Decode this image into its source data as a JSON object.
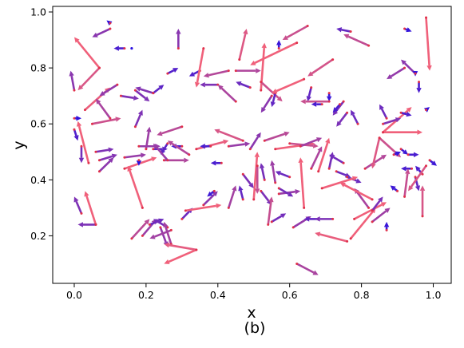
{
  "figure": {
    "label": "(b)"
  },
  "chart_data": {
    "type": "quiver",
    "xlabel": "x",
    "ylabel": "y",
    "xlim": [
      -0.06,
      1.05
    ],
    "ylim": [
      0.03,
      1.02
    ],
    "xticks": [
      {
        "value": 0.0,
        "label": "0.0"
      },
      {
        "value": 0.2,
        "label": "0.2"
      },
      {
        "value": 0.4,
        "label": "0.4"
      },
      {
        "value": 0.6,
        "label": "0.6"
      },
      {
        "value": 0.8,
        "label": "0.8"
      },
      {
        "value": 1.0,
        "label": "1.0"
      }
    ],
    "yticks": [
      {
        "value": 0.2,
        "label": "0.2"
      },
      {
        "value": 0.4,
        "label": "0.4"
      },
      {
        "value": 0.6,
        "label": "0.6"
      },
      {
        "value": 0.8,
        "label": "0.8"
      },
      {
        "value": 1.0,
        "label": "1.0"
      }
    ],
    "grid": false,
    "color_scale": {
      "long_arrow_color": "#f0607a",
      "short_arrow_color": "#2a10e0"
    },
    "arrows": [
      {
        "x": 0.07,
        "y": 0.8,
        "dx": -0.06,
        "dy": -0.08
      },
      {
        "x": 0.07,
        "y": 0.8,
        "dx": -0.07,
        "dy": 0.11
      },
      {
        "x": 0.1,
        "y": 0.94,
        "dx": -0.05,
        "dy": -0.03
      },
      {
        "x": 0.1,
        "y": 0.96,
        "dx": -0.01,
        "dy": 0.01
      },
      {
        "x": 0.14,
        "y": 0.87,
        "dx": -0.03,
        "dy": 0.0
      },
      {
        "x": 0.16,
        "y": 0.87,
        "dx": 0.0,
        "dy": 0.0
      },
      {
        "x": 0.29,
        "y": 0.87,
        "dx": 0.0,
        "dy": 0.07
      },
      {
        "x": 0.46,
        "y": 0.83,
        "dx": 0.02,
        "dy": 0.11
      },
      {
        "x": 0.52,
        "y": 0.72,
        "dx": 0.01,
        "dy": 0.17
      },
      {
        "x": 0.57,
        "y": 0.87,
        "dx": 0.0,
        "dy": 0.03
      },
      {
        "x": 0.62,
        "y": 0.89,
        "dx": -0.13,
        "dy": -0.08
      },
      {
        "x": 0.65,
        "y": 0.95,
        "dx": -0.07,
        "dy": -0.05
      },
      {
        "x": 0.77,
        "y": 0.93,
        "dx": -0.04,
        "dy": 0.01
      },
      {
        "x": 0.72,
        "y": 0.83,
        "dx": -0.07,
        "dy": -0.06
      },
      {
        "x": 0.82,
        "y": 0.88,
        "dx": -0.07,
        "dy": 0.04
      },
      {
        "x": 0.92,
        "y": 0.94,
        "dx": 0.02,
        "dy": -0.01
      },
      {
        "x": 0.98,
        "y": 0.98,
        "dx": 0.01,
        "dy": -0.19
      },
      {
        "x": 0.92,
        "y": 0.8,
        "dx": -0.05,
        "dy": -0.04
      },
      {
        "x": 0.95,
        "y": 0.78,
        "dx": -0.04,
        "dy": 0.05
      },
      {
        "x": 0.95,
        "y": 0.78,
        "dx": 0.0,
        "dy": -0.01
      },
      {
        "x": 0.96,
        "y": 0.75,
        "dx": 0.0,
        "dy": -0.04
      },
      {
        "x": 0.0,
        "y": 0.72,
        "dx": -0.01,
        "dy": 0.07
      },
      {
        "x": 0.03,
        "y": 0.65,
        "dx": 0.07,
        "dy": 0.08
      },
      {
        "x": 0.05,
        "y": 0.6,
        "dx": 0.08,
        "dy": 0.02
      },
      {
        "x": 0.1,
        "y": 0.62,
        "dx": -0.04,
        "dy": 0.07
      },
      {
        "x": 0.12,
        "y": 0.74,
        "dx": -0.05,
        "dy": -0.04
      },
      {
        "x": 0.13,
        "y": 0.7,
        "dx": 0.05,
        "dy": -0.01
      },
      {
        "x": 0.17,
        "y": 0.72,
        "dx": 0.04,
        "dy": -0.04
      },
      {
        "x": 0.22,
        "y": 0.71,
        "dx": -0.05,
        "dy": 0.02
      },
      {
        "x": 0.22,
        "y": 0.71,
        "dx": 0.03,
        "dy": 0.03
      },
      {
        "x": 0.26,
        "y": 0.78,
        "dx": 0.03,
        "dy": 0.02
      },
      {
        "x": 0.35,
        "y": 0.79,
        "dx": -0.03,
        "dy": -0.02
      },
      {
        "x": 0.36,
        "y": 0.87,
        "dx": -0.02,
        "dy": -0.14
      },
      {
        "x": 0.4,
        "y": 0.74,
        "dx": -0.05,
        "dy": 0.0
      },
      {
        "x": 0.43,
        "y": 0.79,
        "dx": -0.07,
        "dy": -0.02
      },
      {
        "x": 0.45,
        "y": 0.68,
        "dx": -0.05,
        "dy": 0.06
      },
      {
        "x": 0.45,
        "y": 0.79,
        "dx": 0.07,
        "dy": 0.0
      },
      {
        "x": 0.52,
        "y": 0.75,
        "dx": 0.06,
        "dy": -0.07
      },
      {
        "x": 0.49,
        "y": 0.73,
        "dx": -0.04,
        "dy": 0.02
      },
      {
        "x": 0.55,
        "y": 0.7,
        "dx": -0.03,
        "dy": -0.06
      },
      {
        "x": 0.56,
        "y": 0.71,
        "dx": -0.01,
        "dy": -0.05
      },
      {
        "x": 0.64,
        "y": 0.76,
        "dx": -0.09,
        "dy": -0.05
      },
      {
        "x": 0.66,
        "y": 0.73,
        "dx": -0.01,
        "dy": -0.05
      },
      {
        "x": 0.71,
        "y": 0.71,
        "dx": 0.0,
        "dy": -0.03
      },
      {
        "x": 0.71,
        "y": 0.68,
        "dx": -0.08,
        "dy": 0.0
      },
      {
        "x": 0.69,
        "y": 0.67,
        "dx": -0.03,
        "dy": 0.0
      },
      {
        "x": 0.86,
        "y": 0.57,
        "dx": 0.08,
        "dy": 0.09
      },
      {
        "x": 0.86,
        "y": 0.57,
        "dx": 0.11,
        "dy": 0.0
      },
      {
        "x": 0.87,
        "y": 0.62,
        "dx": -0.02,
        "dy": 0.05
      },
      {
        "x": 0.91,
        "y": 0.64,
        "dx": 0.03,
        "dy": -0.01
      },
      {
        "x": 0.98,
        "y": 0.65,
        "dx": 0.01,
        "dy": 0.01
      },
      {
        "x": 0.86,
        "y": 0.6,
        "dx": 0.05,
        "dy": 0.02
      },
      {
        "x": 0.79,
        "y": 0.6,
        "dx": -0.02,
        "dy": 0.05
      },
      {
        "x": 0.75,
        "y": 0.68,
        "dx": -0.03,
        "dy": -0.05
      },
      {
        "x": 0.76,
        "y": 0.64,
        "dx": -0.03,
        "dy": -0.05
      },
      {
        "x": 0.74,
        "y": 0.67,
        "dx": -0.02,
        "dy": -0.03
      },
      {
        "x": 0.0,
        "y": 0.62,
        "dx": 0.02,
        "dy": 0.0
      },
      {
        "x": 0.0,
        "y": 0.58,
        "dx": 0.01,
        "dy": -0.04
      },
      {
        "x": 0.02,
        "y": 0.52,
        "dx": 0.0,
        "dy": -0.06
      },
      {
        "x": 0.04,
        "y": 0.46,
        "dx": -0.03,
        "dy": 0.15
      },
      {
        "x": 0.06,
        "y": 0.5,
        "dx": 0.05,
        "dy": 0.01
      },
      {
        "x": 0.07,
        "y": 0.47,
        "dx": 0.05,
        "dy": 0.02
      },
      {
        "x": 0.07,
        "y": 0.43,
        "dx": 0.04,
        "dy": 0.05
      },
      {
        "x": 0.17,
        "y": 0.59,
        "dx": 0.02,
        "dy": 0.06
      },
      {
        "x": 0.14,
        "y": 0.48,
        "dx": 0.06,
        "dy": 0.01
      },
      {
        "x": 0.14,
        "y": 0.44,
        "dx": 0.09,
        "dy": 0.04
      },
      {
        "x": 0.18,
        "y": 0.47,
        "dx": 0.0,
        "dy": -0.02
      },
      {
        "x": 0.18,
        "y": 0.52,
        "dx": 0.06,
        "dy": 0.0
      },
      {
        "x": 0.2,
        "y": 0.51,
        "dx": 0.01,
        "dy": 0.08
      },
      {
        "x": 0.22,
        "y": 0.51,
        "dx": 0.04,
        "dy": 0.0
      },
      {
        "x": 0.25,
        "y": 0.47,
        "dx": 0.07,
        "dy": 0.0
      },
      {
        "x": 0.26,
        "y": 0.53,
        "dx": -0.02,
        "dy": -0.04
      },
      {
        "x": 0.26,
        "y": 0.47,
        "dx": -0.04,
        "dy": 0.06
      },
      {
        "x": 0.3,
        "y": 0.59,
        "dx": -0.07,
        "dy": -0.03
      },
      {
        "x": 0.3,
        "y": 0.52,
        "dx": -0.03,
        "dy": 0.0
      },
      {
        "x": 0.32,
        "y": 0.49,
        "dx": -0.06,
        "dy": 0.05
      },
      {
        "x": 0.34,
        "y": 0.51,
        "dx": 0.09,
        "dy": 0.03
      },
      {
        "x": 0.38,
        "y": 0.52,
        "dx": -0.03,
        "dy": 0.0
      },
      {
        "x": 0.41,
        "y": 0.46,
        "dx": -0.03,
        "dy": 0.0
      },
      {
        "x": 0.43,
        "y": 0.52,
        "dx": 0.06,
        "dy": 0.01
      },
      {
        "x": 0.47,
        "y": 0.54,
        "dx": -0.08,
        "dy": 0.04
      },
      {
        "x": 0.49,
        "y": 0.51,
        "dx": 0.03,
        "dy": 0.06
      },
      {
        "x": 0.53,
        "y": 0.54,
        "dx": 0.07,
        "dy": 0.03
      },
      {
        "x": 0.56,
        "y": 0.51,
        "dx": 0.11,
        "dy": 0.02
      },
      {
        "x": 0.6,
        "y": 0.53,
        "dx": 0.08,
        "dy": -0.01
      },
      {
        "x": 0.63,
        "y": 0.52,
        "dx": 0.06,
        "dy": 0.03
      },
      {
        "x": 0.66,
        "y": 0.44,
        "dx": 0.03,
        "dy": 0.08
      },
      {
        "x": 0.68,
        "y": 0.43,
        "dx": 0.03,
        "dy": 0.12
      },
      {
        "x": 0.71,
        "y": 0.44,
        "dx": 0.01,
        "dy": 0.06
      },
      {
        "x": 0.73,
        "y": 0.43,
        "dx": 0.04,
        "dy": -0.02
      },
      {
        "x": 0.75,
        "y": 0.46,
        "dx": -0.04,
        "dy": 0.03
      },
      {
        "x": 0.76,
        "y": 0.41,
        "dx": 0.04,
        "dy": -0.02
      },
      {
        "x": 0.81,
        "y": 0.44,
        "dx": 0.06,
        "dy": 0.05
      },
      {
        "x": 0.85,
        "y": 0.55,
        "dx": 0.06,
        "dy": -0.07
      },
      {
        "x": 0.85,
        "y": 0.55,
        "dx": -0.02,
        "dy": -0.11
      },
      {
        "x": 0.89,
        "y": 0.49,
        "dx": 0.02,
        "dy": 0.01
      },
      {
        "x": 0.91,
        "y": 0.51,
        "dx": 0.02,
        "dy": -0.02
      },
      {
        "x": 0.93,
        "y": 0.49,
        "dx": 0.03,
        "dy": 0.0
      },
      {
        "x": 0.94,
        "y": 0.44,
        "dx": -0.03,
        "dy": 0.0
      },
      {
        "x": 0.95,
        "y": 0.41,
        "dx": 0.01,
        "dy": -0.05
      },
      {
        "x": 0.97,
        "y": 0.42,
        "dx": -0.02,
        "dy": 0.03
      },
      {
        "x": 0.98,
        "y": 0.45,
        "dx": -0.05,
        "dy": -0.09
      },
      {
        "x": 0.99,
        "y": 0.47,
        "dx": 0.02,
        "dy": -0.02
      },
      {
        "x": 0.97,
        "y": 0.27,
        "dx": 0.0,
        "dy": 0.11
      },
      {
        "x": 0.02,
        "y": 0.28,
        "dx": -0.02,
        "dy": 0.06
      },
      {
        "x": 0.06,
        "y": 0.24,
        "dx": -0.03,
        "dy": 0.12
      },
      {
        "x": 0.06,
        "y": 0.24,
        "dx": -0.05,
        "dy": 0.0
      },
      {
        "x": 0.16,
        "y": 0.19,
        "dx": 0.05,
        "dy": 0.07
      },
      {
        "x": 0.19,
        "y": 0.2,
        "dx": 0.04,
        "dy": 0.06
      },
      {
        "x": 0.19,
        "y": 0.3,
        "dx": -0.04,
        "dy": 0.15
      },
      {
        "x": 0.21,
        "y": 0.24,
        "dx": 0.04,
        "dy": 0.02
      },
      {
        "x": 0.24,
        "y": 0.23,
        "dx": 0.02,
        "dy": -0.07
      },
      {
        "x": 0.26,
        "y": 0.23,
        "dx": -0.04,
        "dy": 0.03
      },
      {
        "x": 0.27,
        "y": 0.17,
        "dx": -0.02,
        "dy": 0.08
      },
      {
        "x": 0.27,
        "y": 0.22,
        "dx": -0.06,
        "dy": -0.03
      },
      {
        "x": 0.34,
        "y": 0.15,
        "dx": -0.09,
        "dy": -0.05
      },
      {
        "x": 0.34,
        "y": 0.15,
        "dx": -0.09,
        "dy": 0.02
      },
      {
        "x": 0.3,
        "y": 0.26,
        "dx": 0.03,
        "dy": 0.04
      },
      {
        "x": 0.31,
        "y": 0.29,
        "dx": 0.1,
        "dy": 0.02
      },
      {
        "x": 0.36,
        "y": 0.31,
        "dx": 0.04,
        "dy": 0.05
      },
      {
        "x": 0.39,
        "y": 0.36,
        "dx": -0.02,
        "dy": -0.02
      },
      {
        "x": 0.43,
        "y": 0.3,
        "dx": 0.02,
        "dy": 0.08
      },
      {
        "x": 0.47,
        "y": 0.33,
        "dx": -0.01,
        "dy": 0.05
      },
      {
        "x": 0.47,
        "y": 0.42,
        "dx": 0.03,
        "dy": -0.05
      },
      {
        "x": 0.5,
        "y": 0.33,
        "dx": 0.01,
        "dy": 0.17
      },
      {
        "x": 0.51,
        "y": 0.45,
        "dx": 0.0,
        "dy": -0.1
      },
      {
        "x": 0.52,
        "y": 0.36,
        "dx": 0.03,
        "dy": -0.05
      },
      {
        "x": 0.53,
        "y": 0.4,
        "dx": -0.01,
        "dy": 0.06
      },
      {
        "x": 0.54,
        "y": 0.24,
        "dx": 0.01,
        "dy": 0.1
      },
      {
        "x": 0.55,
        "y": 0.25,
        "dx": 0.04,
        "dy": 0.03
      },
      {
        "x": 0.57,
        "y": 0.35,
        "dx": 0.06,
        "dy": 0.01
      },
      {
        "x": 0.56,
        "y": 0.39,
        "dx": -0.01,
        "dy": 0.08
      },
      {
        "x": 0.57,
        "y": 0.37,
        "dx": 0.04,
        "dy": -0.03
      },
      {
        "x": 0.6,
        "y": 0.41,
        "dx": -0.04,
        "dy": 0.02
      },
      {
        "x": 0.61,
        "y": 0.23,
        "dx": 0.05,
        "dy": 0.04
      },
      {
        "x": 0.64,
        "y": 0.3,
        "dx": -0.01,
        "dy": 0.18
      },
      {
        "x": 0.68,
        "y": 0.26,
        "dx": -0.04,
        "dy": 0.0
      },
      {
        "x": 0.72,
        "y": 0.26,
        "dx": -0.05,
        "dy": 0.0
      },
      {
        "x": 0.69,
        "y": 0.37,
        "dx": 0.1,
        "dy": 0.04
      },
      {
        "x": 0.76,
        "y": 0.18,
        "dx": -0.09,
        "dy": 0.03
      },
      {
        "x": 0.77,
        "y": 0.19,
        "dx": 0.07,
        "dy": 0.11
      },
      {
        "x": 0.78,
        "y": 0.26,
        "dx": 0.09,
        "dy": 0.06
      },
      {
        "x": 0.82,
        "y": 0.3,
        "dx": -0.04,
        "dy": 0.07
      },
      {
        "x": 0.83,
        "y": 0.33,
        "dx": -0.09,
        "dy": 0.06
      },
      {
        "x": 0.83,
        "y": 0.25,
        "dx": 0.05,
        "dy": 0.05
      },
      {
        "x": 0.83,
        "y": 0.29,
        "dx": 0.03,
        "dy": 0.05
      },
      {
        "x": 0.87,
        "y": 0.22,
        "dx": 0.0,
        "dy": 0.03
      },
      {
        "x": 0.9,
        "y": 0.36,
        "dx": -0.02,
        "dy": 0.02
      },
      {
        "x": 0.92,
        "y": 0.34,
        "dx": 0.01,
        "dy": 0.1
      },
      {
        "x": 0.62,
        "y": 0.1,
        "dx": 0.06,
        "dy": -0.04
      }
    ]
  }
}
